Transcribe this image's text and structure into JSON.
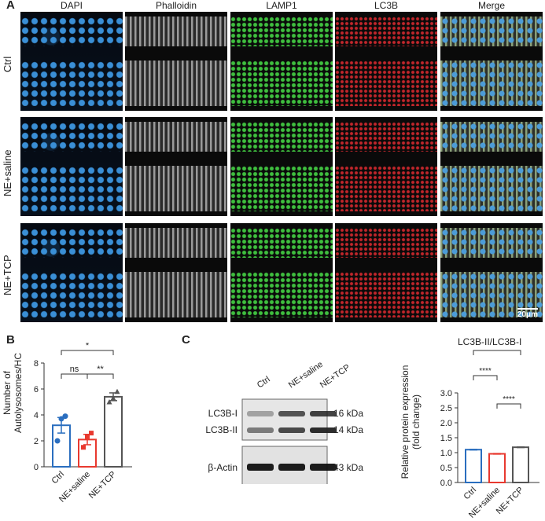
{
  "panels": {
    "a": "A",
    "b": "B",
    "c": "C"
  },
  "panel_a": {
    "columns": [
      "DAPI",
      "Phalloidin",
      "LAMP1",
      "LC3B",
      "Merge"
    ],
    "rows": [
      "Ctrl",
      "NE+saline",
      "NE+TCP"
    ],
    "scale_bar": "20μm",
    "channel_colors": {
      "DAPI": "#3a8fd6",
      "Phalloidin": "#9a9a9a",
      "LAMP1": "#3fbf3f",
      "LC3B": "#c2262b"
    }
  },
  "panel_b_text": {
    "ylabel_line1": "Number of",
    "ylabel_line2": "Autolysosomes/HC"
  },
  "panel_c": {
    "blot_lanes": [
      "Ctrl",
      "NE+saline",
      "NE+TCP"
    ],
    "bands": [
      {
        "label": "LC3B-I",
        "kda": "16 kDa"
      },
      {
        "label": "LC3B-II",
        "kda": "14 kDa"
      },
      {
        "label": "β-Actin",
        "kda": "43 kDa"
      }
    ],
    "chart_title": "LC3B-II/LC3B-I",
    "ylabel_line1": "Relative protein expression",
    "ylabel_line2": "(fold change)"
  },
  "chart_data": [
    {
      "type": "bar",
      "categories": [
        "Ctrl",
        "NE+saline",
        "NE+TCP"
      ],
      "values": [
        3.2,
        2.1,
        5.4
      ],
      "errors": [
        0.6,
        0.4,
        0.3
      ],
      "points": [
        [
          2.0,
          3.7,
          3.9
        ],
        [
          1.5,
          2.3,
          2.6
        ],
        [
          5.0,
          5.3,
          5.8
        ]
      ],
      "ylabel": "Number of Autolysosomes/HC",
      "ylim": [
        0,
        8
      ],
      "yticks": [
        0,
        2,
        4,
        6,
        8
      ],
      "colors": [
        "#2a6ebf",
        "#e8392f",
        "#555555"
      ],
      "significance": [
        {
          "from": 0,
          "to": 2,
          "label": "*"
        },
        {
          "from": 0,
          "to": 1,
          "label": "ns"
        },
        {
          "from": 1,
          "to": 2,
          "label": "**"
        }
      ]
    },
    {
      "type": "bar",
      "title": "LC3B-II/LC3B-I",
      "categories": [
        "Ctrl",
        "NE+saline",
        "NE+TCP"
      ],
      "values": [
        1.1,
        0.96,
        1.18
      ],
      "errors": [
        0.01,
        0.01,
        0.01
      ],
      "ylabel": "Relative protein expression (fold change)",
      "ylim": [
        0,
        3.0
      ],
      "yticks": [
        "0.0",
        "0.5",
        "1.0",
        "1.5",
        "2.0",
        "2.5",
        "3.0"
      ],
      "colors": [
        "#2a6ebf",
        "#e8392f",
        "#555555"
      ],
      "significance": [
        {
          "from": 0,
          "to": 2,
          "label": "***"
        },
        {
          "from": 0,
          "to": 1,
          "label": "****"
        },
        {
          "from": 1,
          "to": 2,
          "label": "****"
        }
      ]
    }
  ]
}
